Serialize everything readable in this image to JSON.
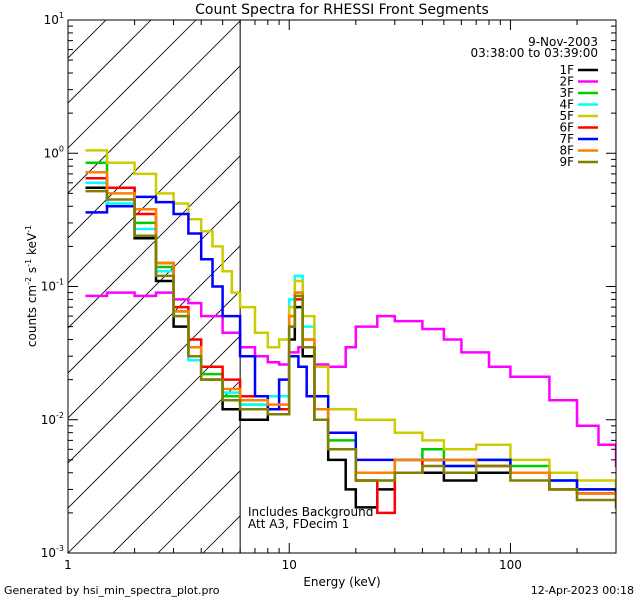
{
  "chart_data": {
    "type": "line",
    "title": "Count Spectra for RHESSI Front Segments",
    "xlabel": "Energy (keV)",
    "ylabel_parts": [
      "counts cm",
      "-2",
      " s",
      "-1",
      " keV",
      "-1"
    ],
    "xscale": "log",
    "yscale": "log",
    "xlim": [
      1,
      300
    ],
    "ylim": [
      0.001,
      10
    ],
    "x_ticks": [
      {
        "value": 1,
        "label": "1"
      },
      {
        "value": 10,
        "label": "10"
      },
      {
        "value": 100,
        "label": "100"
      }
    ],
    "y_ticks": [
      {
        "value": 0.001,
        "mantissa": "10",
        "exp": "-3"
      },
      {
        "value": 0.01,
        "mantissa": "10",
        "exp": "-2"
      },
      {
        "value": 0.1,
        "mantissa": "10",
        "exp": "-1"
      },
      {
        "value": 1,
        "mantissa": "10",
        "exp": "0"
      },
      {
        "value": 10,
        "mantissa": "10",
        "exp": "1"
      }
    ],
    "date": "9-Nov-2003",
    "time_range": "03:38:00 to 03:39:00",
    "annotations": [
      "Includes Background",
      "Att A3, FDecim 1"
    ],
    "attenuator_cutoff_kev": 6,
    "legend_position": "top-right",
    "series": [
      {
        "name": "1F",
        "color": "#000000",
        "points": [
          [
            1.2,
            0.55
          ],
          [
            1.5,
            0.4
          ],
          [
            2.0,
            0.23
          ],
          [
            2.5,
            0.11
          ],
          [
            3.0,
            0.05
          ],
          [
            3.5,
            0.03
          ],
          [
            4.0,
            0.02
          ],
          [
            5.0,
            0.012
          ],
          [
            6.0,
            0.01
          ],
          [
            8.0,
            0.012
          ],
          [
            10.0,
            0.04
          ],
          [
            10.6,
            0.07
          ],
          [
            11.5,
            0.03
          ],
          [
            13.0,
            0.01
          ],
          [
            15.0,
            0.005
          ],
          [
            18.0,
            0.003
          ],
          [
            20.0,
            0.0022
          ],
          [
            25.0,
            0.003
          ],
          [
            30.0,
            0.004
          ],
          [
            40.0,
            0.004
          ],
          [
            50.0,
            0.0035
          ],
          [
            70.0,
            0.004
          ],
          [
            100.0,
            0.004
          ],
          [
            150.0,
            0.003
          ],
          [
            200.0,
            0.0028
          ],
          [
            300.0,
            0.0025
          ]
        ]
      },
      {
        "name": "2F",
        "color": "#ff00ff",
        "points": [
          [
            1.2,
            0.085
          ],
          [
            1.5,
            0.09
          ],
          [
            2.0,
            0.085
          ],
          [
            2.5,
            0.09
          ],
          [
            3.0,
            0.08
          ],
          [
            3.5,
            0.075
          ],
          [
            4.0,
            0.06
          ],
          [
            5.0,
            0.045
          ],
          [
            6.0,
            0.035
          ],
          [
            7.0,
            0.03
          ],
          [
            8.0,
            0.027
          ],
          [
            9.0,
            0.026
          ],
          [
            10.0,
            0.032
          ],
          [
            11.0,
            0.035
          ],
          [
            13.0,
            0.026
          ],
          [
            15.0,
            0.025
          ],
          [
            18.0,
            0.035
          ],
          [
            20.0,
            0.05
          ],
          [
            25.0,
            0.06
          ],
          [
            30.0,
            0.055
          ],
          [
            40.0,
            0.048
          ],
          [
            50.0,
            0.04
          ],
          [
            60.0,
            0.032
          ],
          [
            80.0,
            0.025
          ],
          [
            100.0,
            0.021
          ],
          [
            150.0,
            0.014
          ],
          [
            200.0,
            0.009
          ],
          [
            250.0,
            0.0065
          ],
          [
            300.0,
            0.0045
          ]
        ]
      },
      {
        "name": "3F",
        "color": "#00cc00",
        "points": [
          [
            1.2,
            0.85
          ],
          [
            1.5,
            0.55
          ],
          [
            2.0,
            0.3
          ],
          [
            2.5,
            0.14
          ],
          [
            3.0,
            0.065
          ],
          [
            3.5,
            0.035
          ],
          [
            4.0,
            0.022
          ],
          [
            5.0,
            0.015
          ],
          [
            6.0,
            0.013
          ],
          [
            8.0,
            0.012
          ],
          [
            10.0,
            0.06
          ],
          [
            10.6,
            0.09
          ],
          [
            11.5,
            0.04
          ],
          [
            13.0,
            0.012
          ],
          [
            15.0,
            0.007
          ],
          [
            20.0,
            0.004
          ],
          [
            30.0,
            0.005
          ],
          [
            40.0,
            0.006
          ],
          [
            50.0,
            0.005
          ],
          [
            70.0,
            0.005
          ],
          [
            100.0,
            0.0045
          ],
          [
            150.0,
            0.0035
          ],
          [
            200.0,
            0.003
          ],
          [
            300.0,
            0.0025
          ]
        ]
      },
      {
        "name": "4F",
        "color": "#00ffff",
        "points": [
          [
            1.2,
            0.6
          ],
          [
            1.5,
            0.42
          ],
          [
            2.0,
            0.27
          ],
          [
            2.5,
            0.13
          ],
          [
            3.0,
            0.06
          ],
          [
            3.5,
            0.028
          ],
          [
            4.0,
            0.02
          ],
          [
            5.0,
            0.016
          ],
          [
            6.0,
            0.013
          ],
          [
            8.0,
            0.015
          ],
          [
            10.0,
            0.08
          ],
          [
            10.6,
            0.12
          ],
          [
            11.5,
            0.05
          ],
          [
            13.0,
            0.015
          ],
          [
            15.0,
            0.006
          ],
          [
            20.0,
            0.0035
          ],
          [
            30.0,
            0.004
          ],
          [
            40.0,
            0.005
          ],
          [
            50.0,
            0.0045
          ],
          [
            70.0,
            0.005
          ],
          [
            100.0,
            0.004
          ],
          [
            150.0,
            0.0035
          ],
          [
            200.0,
            0.003
          ],
          [
            300.0,
            0.0025
          ]
        ]
      },
      {
        "name": "5F",
        "color": "#cccc00",
        "points": [
          [
            1.2,
            1.05
          ],
          [
            1.5,
            0.85
          ],
          [
            2.0,
            0.7
          ],
          [
            2.5,
            0.5
          ],
          [
            3.0,
            0.42
          ],
          [
            3.5,
            0.32
          ],
          [
            4.0,
            0.26
          ],
          [
            4.5,
            0.2
          ],
          [
            5.0,
            0.13
          ],
          [
            5.5,
            0.09
          ],
          [
            6.0,
            0.07
          ],
          [
            7.0,
            0.045
          ],
          [
            8.0,
            0.035
          ],
          [
            9.0,
            0.04
          ],
          [
            10.0,
            0.07
          ],
          [
            10.6,
            0.11
          ],
          [
            11.5,
            0.06
          ],
          [
            13.0,
            0.025
          ],
          [
            15.0,
            0.012
          ],
          [
            20.0,
            0.01
          ],
          [
            30.0,
            0.008
          ],
          [
            40.0,
            0.007
          ],
          [
            50.0,
            0.006
          ],
          [
            70.0,
            0.0065
          ],
          [
            100.0,
            0.005
          ],
          [
            150.0,
            0.004
          ],
          [
            200.0,
            0.0035
          ],
          [
            300.0,
            0.003
          ]
        ]
      },
      {
        "name": "6F",
        "color": "#ff0000",
        "points": [
          [
            1.2,
            0.65
          ],
          [
            1.5,
            0.55
          ],
          [
            2.0,
            0.35
          ],
          [
            2.5,
            0.15
          ],
          [
            3.0,
            0.07
          ],
          [
            3.5,
            0.04
          ],
          [
            4.0,
            0.025
          ],
          [
            5.0,
            0.02
          ],
          [
            6.0,
            0.015
          ],
          [
            8.0,
            0.012
          ],
          [
            10.0,
            0.05
          ],
          [
            10.6,
            0.08
          ],
          [
            11.5,
            0.035
          ],
          [
            13.0,
            0.012
          ],
          [
            15.0,
            0.006
          ],
          [
            20.0,
            0.0035
          ],
          [
            25.0,
            0.002
          ],
          [
            30.0,
            0.004
          ],
          [
            40.0,
            0.005
          ],
          [
            50.0,
            0.004
          ],
          [
            70.0,
            0.0045
          ],
          [
            100.0,
            0.004
          ],
          [
            150.0,
            0.003
          ],
          [
            200.0,
            0.0028
          ],
          [
            300.0,
            0.0025
          ]
        ]
      },
      {
        "name": "7F",
        "color": "#0000ff",
        "points": [
          [
            1.2,
            0.36
          ],
          [
            1.5,
            0.4
          ],
          [
            2.0,
            0.47
          ],
          [
            2.5,
            0.43
          ],
          [
            3.0,
            0.35
          ],
          [
            3.5,
            0.25
          ],
          [
            4.0,
            0.16
          ],
          [
            4.5,
            0.1
          ],
          [
            5.0,
            0.06
          ],
          [
            6.0,
            0.03
          ],
          [
            7.0,
            0.015
          ],
          [
            8.0,
            0.012
          ],
          [
            9.0,
            0.02
          ],
          [
            10.0,
            0.03
          ],
          [
            11.0,
            0.025
          ],
          [
            12.0,
            0.015
          ],
          [
            15.0,
            0.008
          ],
          [
            20.0,
            0.005
          ],
          [
            30.0,
            0.005
          ],
          [
            40.0,
            0.005
          ],
          [
            50.0,
            0.0045
          ],
          [
            70.0,
            0.005
          ],
          [
            100.0,
            0.004
          ],
          [
            150.0,
            0.0035
          ],
          [
            200.0,
            0.003
          ],
          [
            300.0,
            0.0025
          ]
        ]
      },
      {
        "name": "8F",
        "color": "#ff8000",
        "points": [
          [
            1.2,
            0.72
          ],
          [
            1.5,
            0.5
          ],
          [
            2.0,
            0.38
          ],
          [
            2.5,
            0.15
          ],
          [
            3.0,
            0.065
          ],
          [
            3.5,
            0.035
          ],
          [
            4.0,
            0.02
          ],
          [
            5.0,
            0.017
          ],
          [
            6.0,
            0.014
          ],
          [
            8.0,
            0.013
          ],
          [
            10.0,
            0.06
          ],
          [
            10.6,
            0.09
          ],
          [
            11.5,
            0.04
          ],
          [
            13.0,
            0.012
          ],
          [
            15.0,
            0.006
          ],
          [
            20.0,
            0.004
          ],
          [
            30.0,
            0.005
          ],
          [
            40.0,
            0.005
          ],
          [
            50.0,
            0.005
          ],
          [
            70.0,
            0.0045
          ],
          [
            100.0,
            0.004
          ],
          [
            150.0,
            0.003
          ],
          [
            200.0,
            0.0028
          ],
          [
            300.0,
            0.0025
          ]
        ]
      },
      {
        "name": "9F",
        "color": "#808000",
        "points": [
          [
            1.2,
            0.52
          ],
          [
            1.5,
            0.45
          ],
          [
            2.0,
            0.24
          ],
          [
            2.5,
            0.12
          ],
          [
            3.0,
            0.06
          ],
          [
            3.5,
            0.03
          ],
          [
            4.0,
            0.02
          ],
          [
            5.0,
            0.014
          ],
          [
            6.0,
            0.012
          ],
          [
            8.0,
            0.011
          ],
          [
            10.0,
            0.05
          ],
          [
            10.6,
            0.085
          ],
          [
            11.5,
            0.035
          ],
          [
            13.0,
            0.01
          ],
          [
            15.0,
            0.006
          ],
          [
            20.0,
            0.0035
          ],
          [
            30.0,
            0.004
          ],
          [
            40.0,
            0.0045
          ],
          [
            50.0,
            0.004
          ],
          [
            70.0,
            0.0045
          ],
          [
            100.0,
            0.0035
          ],
          [
            150.0,
            0.003
          ],
          [
            200.0,
            0.0025
          ],
          [
            300.0,
            0.0022
          ]
        ]
      }
    ]
  },
  "footer": {
    "generator": "Generated by hsi_min_spectra_plot.pro",
    "timestamp": "12-Apr-2023 00:18"
  }
}
